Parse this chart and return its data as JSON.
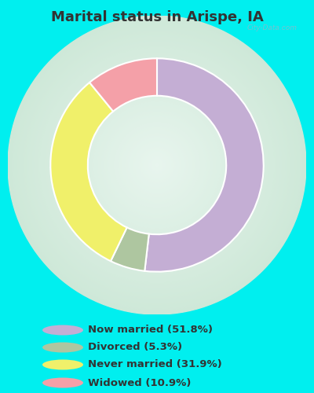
{
  "title": "Marital status in Arispe, IA",
  "title_color": "#333333",
  "background_color": "#00EFEF",
  "slices": [
    51.8,
    5.3,
    31.9,
    10.9
  ],
  "labels": [
    "Now married (51.8%)",
    "Divorced (5.3%)",
    "Never married (31.9%)",
    "Widowed (10.9%)"
  ],
  "colors": [
    "#c4aed4",
    "#aec6a0",
    "#f0f06a",
    "#f4a0a8"
  ],
  "donut_outer_r": 1.0,
  "donut_width": 0.35,
  "legend_text_color": "#333333",
  "watermark": "City-Data.com",
  "chart_bg_color": "#cee8d8",
  "chart_center_color": "#e8f5ee"
}
